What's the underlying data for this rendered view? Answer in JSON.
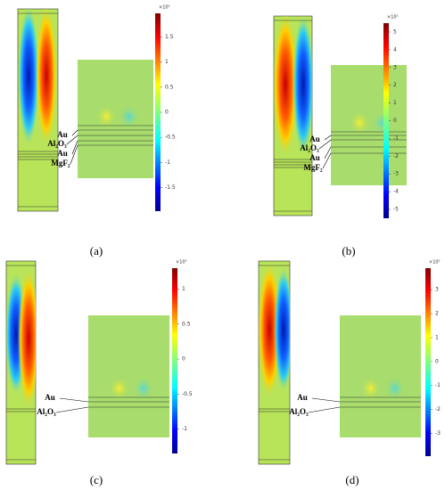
{
  "panels": [
    {
      "label": "(a)",
      "colorbar": {
        "multiplier": "×10⁵",
        "range": [
          -1.97,
          1.97
        ],
        "ticks": [
          1.5,
          1,
          0.5,
          0,
          -0.5,
          -1,
          -1.5
        ]
      },
      "layers": [
        "Au",
        "Al₂O₃",
        "Au",
        "MgF₂"
      ]
    },
    {
      "label": "(b)",
      "colorbar": {
        "multiplier": "×10⁵",
        "range": [
          -5.5,
          5.5
        ],
        "ticks": [
          5,
          4,
          3,
          2,
          1,
          0,
          -1,
          -2,
          -3,
          -4,
          -5
        ]
      },
      "layers": [
        "Au",
        "Al₂O₃",
        "Au",
        "MgF₂"
      ]
    },
    {
      "label": "(c)",
      "colorbar": {
        "multiplier": "×10⁵",
        "range": [
          -1.35,
          1.3
        ],
        "ticks": [
          1,
          0.5,
          0,
          -0.5,
          -1
        ]
      },
      "layers": [
        "Au",
        "Al₂O₃"
      ]
    },
    {
      "label": "(d)",
      "colorbar": {
        "multiplier": "×10⁵",
        "range": [
          -3.95,
          3.9
        ],
        "ticks": [
          3,
          2,
          1,
          0,
          -1,
          -2,
          -3
        ]
      },
      "layers": [
        "Au",
        "Al₂O₃"
      ]
    }
  ]
}
